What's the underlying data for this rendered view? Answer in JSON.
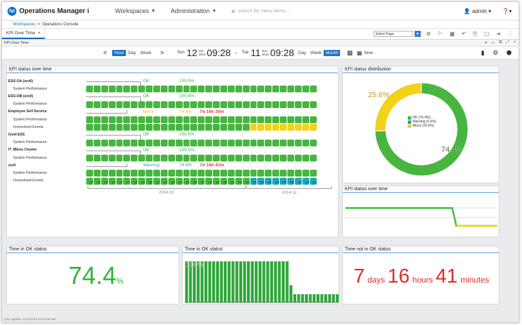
{
  "app": {
    "title": "Operations Manager i",
    "logo": "hp"
  },
  "topnav": {
    "workspaces": "Workspaces",
    "administration": "Administration",
    "search_placeholder": "search for menu items...",
    "user": "admin"
  },
  "breadcrumb": {
    "root": "Workspaces",
    "separator": ">",
    "current": "Operations Console"
  },
  "tab": {
    "label": "KPI Over Time",
    "close": "×"
  },
  "select_page": {
    "value": "Select Page"
  },
  "subbar": {
    "title": "KPI Over Time"
  },
  "timenav": {
    "segments_left": [
      "Hour",
      "Day",
      "Week"
    ],
    "active_left": "Hour",
    "start": {
      "dow": "Sun",
      "day": "12",
      "month": "Oct",
      "year": "2014",
      "time": "09:28"
    },
    "dash": "–",
    "end": {
      "dow": "Tue",
      "day": "11",
      "month": "Nov",
      "year": "2014",
      "time": "09:28"
    },
    "segments_right": [
      "Day",
      "Week",
      "Month"
    ],
    "active_right": "Month",
    "now": "Now"
  },
  "kpi_panel": {
    "title": "KPI status over time",
    "rows": [
      {
        "label": "ESS-OA (srv0)",
        "type": "ci"
      },
      {
        "label": "System Performance",
        "type": "kpi"
      },
      {
        "label": "ESS-OB (srv0)",
        "type": "ci"
      },
      {
        "label": "System Performance",
        "type": "kpi"
      },
      {
        "label": "Employee Self Service",
        "type": "ci"
      },
      {
        "label": "System Performance",
        "type": "kpi"
      },
      {
        "label": "Unresolved Events",
        "type": "kpi"
      },
      {
        "label": "Gold ESS",
        "type": "ci"
      },
      {
        "label": "System Performance",
        "type": "kpi"
      },
      {
        "label": "IT JBoss Cluster",
        "type": "ci"
      },
      {
        "label": "System Performance",
        "type": "kpi"
      },
      {
        "label": "srv0",
        "type": "ci"
      },
      {
        "label": "System Performance",
        "type": "kpi"
      },
      {
        "label": "Unresolved Events",
        "type": "kpi"
      }
    ],
    "headers": [
      {
        "status": "OK",
        "pct": "100.0%",
        "duration": ""
      },
      {
        "status": "OK",
        "pct": "100.0%",
        "duration": ""
      },
      {
        "status": "Minor",
        "pct": "74.4%",
        "duration": "7d 16h 30m"
      },
      {
        "status": "OK",
        "pct": "100.0%",
        "duration": ""
      },
      {
        "status": "OK",
        "pct": "100.0%",
        "duration": ""
      },
      {
        "status": "Warning",
        "pct": "74.4%",
        "duration": "7d 16h 41m"
      }
    ],
    "timeline_days": [
      "12",
      "13",
      "14",
      "15",
      "16",
      "17",
      "18",
      "19",
      "20",
      "21",
      "22",
      "23",
      "24",
      "25",
      "26",
      "27",
      "28",
      "29",
      "30",
      "31",
      "01",
      "02",
      "03",
      "04",
      "05",
      "06",
      "07",
      "08",
      "09",
      "10",
      "11"
    ],
    "months": [
      "2014-10",
      "2014-11"
    ],
    "colors": {
      "ok": "#47b640",
      "minor": "#f3d21a",
      "warning": "#1ba9b8",
      "status_ok_text": "#2fb53a",
      "status_minor_text": "#e0c21a",
      "status_warning_text": "#1ba9b8",
      "duration": "#e33333"
    }
  },
  "distribution": {
    "title": "KPI status distribution",
    "slices": [
      {
        "name": "OK",
        "pct": 74.4,
        "label": "OK (74.4%)",
        "color": "#47b640"
      },
      {
        "name": "Warning",
        "pct": 0.0,
        "label": "Warning (0.0%)",
        "color": "#1ba9b8"
      },
      {
        "name": "Minor",
        "pct": 25.6,
        "label": "Minor (25.6%)",
        "color": "#f3d21a"
      }
    ],
    "outer_labels": [
      "25.6%",
      "74.4%"
    ]
  },
  "over_time": {
    "title": "KPI status over time"
  },
  "time_ok": {
    "title": "Time in OK status",
    "value": "74.4",
    "unit": "%"
  },
  "time_ok_chart": {
    "title": "Time in OK status",
    "label": "100%",
    "bars": [
      100,
      100,
      100,
      100,
      100,
      100,
      100,
      100,
      100,
      100,
      100,
      100,
      100,
      100,
      100,
      100,
      100,
      100,
      100,
      100,
      100,
      100,
      100,
      100,
      100,
      100,
      100,
      42,
      20,
      20,
      20,
      20,
      20,
      20,
      20,
      20,
      20,
      20,
      20,
      20
    ]
  },
  "time_not_ok": {
    "title": "Time not in OK status",
    "days": "7",
    "days_unit": "days",
    "hours": "16",
    "hours_unit": "hours",
    "minutes": "41",
    "minutes_unit": "minutes"
  },
  "footer": {
    "text": "Last Update: 11/11/2014 09:23:09 AM"
  }
}
